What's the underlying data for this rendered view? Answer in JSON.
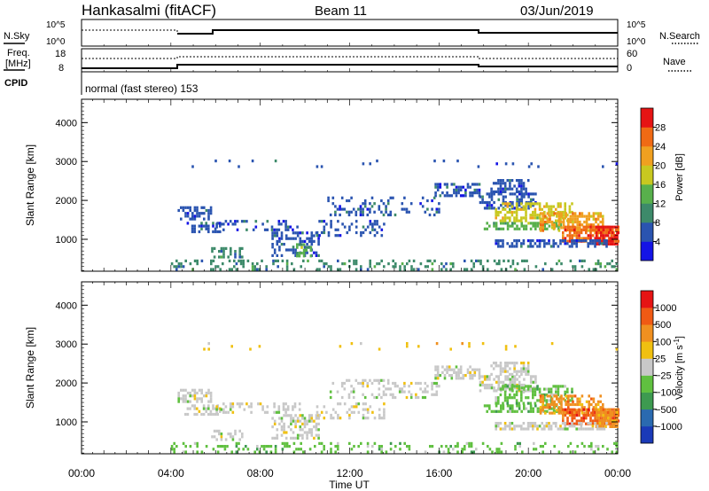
{
  "header": {
    "station": "Hankasalmi (fitACF)",
    "beam": "Beam 11",
    "date": "03/Jun/2019"
  },
  "noise_panel": {
    "left_label": "N.Sky",
    "right_label": "N.Search",
    "ticks_left": [
      "10^5",
      "10^0"
    ],
    "ticks_right": [
      "10^5",
      "10^0"
    ]
  },
  "freq_panel": {
    "left_label_1": "Freq.",
    "left_label_2": "[MHz]",
    "right_label": "Nave",
    "ticks_left": [
      "18",
      "8"
    ],
    "ticks_right": [
      "60",
      "0"
    ]
  },
  "cpid": {
    "label": "CPID",
    "value": "normal (fast stereo) 153"
  },
  "x_axis": {
    "title": "Time UT",
    "ticks": [
      "00:00",
      "04:00",
      "08:00",
      "12:00",
      "16:00",
      "20:00",
      "00:00"
    ],
    "hours": [
      0,
      4,
      8,
      12,
      16,
      20,
      24
    ]
  },
  "chart_data": [
    {
      "type": "heatmap",
      "ylabel": "Slant Range [km]",
      "xlabel": "Time UT",
      "x_range_hours": [
        0,
        24
      ],
      "ylim": [
        180,
        4600
      ],
      "yticks": [
        "4000",
        "3000",
        "2000",
        "1000"
      ],
      "ytick_values": [
        4000,
        3000,
        2000,
        1000
      ],
      "colorbar": {
        "title": "Power [dB]",
        "tick_labels": [
          "28",
          "24",
          "20",
          "16",
          "12",
          "8",
          "4"
        ],
        "tick_values": [
          28,
          24,
          20,
          16,
          12,
          8,
          4
        ],
        "range": [
          0,
          32
        ],
        "colors": [
          "#1414e6",
          "#2a54b0",
          "#3d8a6a",
          "#58b04c",
          "#c8c820",
          "#f0a020",
          "#f06a14",
          "#e61414"
        ]
      },
      "regions": [
        {
          "t": [
            4.3,
            5.8
          ],
          "r": [
            1500,
            1850
          ],
          "level": 1,
          "density": 0.55
        },
        {
          "t": [
            4.6,
            6.2
          ],
          "r": [
            1200,
            1450
          ],
          "level": 1,
          "density": 0.45
        },
        {
          "t": [
            6.0,
            9.8
          ],
          "r": [
            1250,
            1500
          ],
          "level": 1,
          "density": 0.35
        },
        {
          "t": [
            5.8,
            7.2
          ],
          "r": [
            550,
            800
          ],
          "level": 2,
          "density": 0.45
        },
        {
          "t": [
            8.5,
            10.6
          ],
          "r": [
            600,
            1200
          ],
          "level": 1,
          "density": 0.45
        },
        {
          "t": [
            9.6,
            10.3
          ],
          "r": [
            550,
            900
          ],
          "level": 3,
          "density": 0.5
        },
        {
          "t": [
            10.5,
            13.5
          ],
          "r": [
            1100,
            1500
          ],
          "level": 1,
          "density": 0.3
        },
        {
          "t": [
            11.0,
            16.0
          ],
          "r": [
            1600,
            2100
          ],
          "level": 1,
          "density": 0.25
        },
        {
          "t": [
            15.8,
            17.8
          ],
          "r": [
            2100,
            2450
          ],
          "level": 1,
          "density": 0.6
        },
        {
          "t": [
            17.8,
            20.3
          ],
          "r": [
            1800,
            2200
          ],
          "level": 1,
          "density": 0.55
        },
        {
          "t": [
            18.3,
            20.0
          ],
          "r": [
            2250,
            2550
          ],
          "level": 1,
          "density": 0.55
        },
        {
          "t": [
            18.0,
            21.5
          ],
          "r": [
            1250,
            1450
          ],
          "level": 3,
          "density": 0.65
        },
        {
          "t": [
            18.5,
            22.0
          ],
          "r": [
            1500,
            1950
          ],
          "level": 4,
          "density": 0.55
        },
        {
          "t": [
            20.5,
            23.3
          ],
          "r": [
            1200,
            1700
          ],
          "level": 5,
          "density": 0.6
        },
        {
          "t": [
            21.5,
            24.0
          ],
          "r": [
            950,
            1350
          ],
          "level": 6,
          "density": 0.75
        },
        {
          "t": [
            23.0,
            24.0
          ],
          "r": [
            900,
            1350
          ],
          "level": 7,
          "density": 0.85
        },
        {
          "t": [
            18.5,
            23.5
          ],
          "r": [
            850,
            1000
          ],
          "level": 1,
          "density": 0.6
        },
        {
          "t": [
            4.0,
            24.0
          ],
          "r": [
            190,
            480
          ],
          "level": 2,
          "density": 0.22
        },
        {
          "t": [
            4.0,
            24.0
          ],
          "r": [
            2900,
            3050
          ],
          "level": 1,
          "density": 0.03
        }
      ]
    },
    {
      "type": "heatmap",
      "ylabel": "Slant Range [km]",
      "xlabel": "Time UT",
      "x_range_hours": [
        0,
        24
      ],
      "ylim": [
        180,
        4600
      ],
      "yticks": [
        "4000",
        "3000",
        "2000",
        "1000"
      ],
      "ytick_values": [
        4000,
        3000,
        2000,
        1000
      ],
      "colorbar": {
        "title": "Velocity",
        "title_unit_base": "[m s",
        "title_unit_exp": "-1",
        "title_unit_close": "]",
        "tick_labels": [
          "1000",
          "500",
          "100",
          "25",
          "−25",
          "−100",
          "−500",
          "−1000"
        ],
        "tick_values": [
          1000,
          500,
          100,
          25,
          -25,
          -100,
          -500,
          -1000
        ],
        "colors": [
          "#1a3ab8",
          "#2a6ab0",
          "#3d9a50",
          "#60c040",
          "#c8c8c8",
          "#f0c010",
          "#f09020",
          "#f05a14",
          "#e61414"
        ]
      },
      "regions": [
        {
          "t": [
            4.3,
            5.8
          ],
          "r": [
            1500,
            1850
          ],
          "level": 4,
          "density": 0.55
        },
        {
          "t": [
            4.6,
            6.2
          ],
          "r": [
            1200,
            1450
          ],
          "level": 4,
          "density": 0.45
        },
        {
          "t": [
            6.0,
            9.8
          ],
          "r": [
            1250,
            1500
          ],
          "level": 4,
          "density": 0.35
        },
        {
          "t": [
            5.8,
            7.2
          ],
          "r": [
            550,
            800
          ],
          "level": 4,
          "density": 0.45
        },
        {
          "t": [
            8.5,
            10.6
          ],
          "r": [
            600,
            1200
          ],
          "level": 4,
          "density": 0.45
        },
        {
          "t": [
            10.5,
            13.5
          ],
          "r": [
            1100,
            1500
          ],
          "level": 4,
          "density": 0.3
        },
        {
          "t": [
            11.0,
            16.0
          ],
          "r": [
            1600,
            2100
          ],
          "level": 4,
          "density": 0.25
        },
        {
          "t": [
            15.8,
            17.8
          ],
          "r": [
            2100,
            2450
          ],
          "level": 4,
          "density": 0.6
        },
        {
          "t": [
            17.8,
            20.3
          ],
          "r": [
            1800,
            2200
          ],
          "level": 4,
          "density": 0.55
        },
        {
          "t": [
            18.3,
            20.0
          ],
          "r": [
            2250,
            2550
          ],
          "level": 4,
          "density": 0.55
        },
        {
          "t": [
            18.0,
            21.5
          ],
          "r": [
            1250,
            1450
          ],
          "level": 3,
          "density": 0.65
        },
        {
          "t": [
            18.5,
            22.0
          ],
          "r": [
            1500,
            1950
          ],
          "level": 3,
          "density": 0.5
        },
        {
          "t": [
            20.5,
            23.3
          ],
          "r": [
            1200,
            1700
          ],
          "level": 6,
          "density": 0.6
        },
        {
          "t": [
            21.5,
            24.0
          ],
          "r": [
            950,
            1350
          ],
          "level": 7,
          "density": 0.75
        },
        {
          "t": [
            23.0,
            24.0
          ],
          "r": [
            900,
            1350
          ],
          "level": 6,
          "density": 0.85
        },
        {
          "t": [
            18.5,
            23.5
          ],
          "r": [
            850,
            1000
          ],
          "level": 4,
          "density": 0.6
        },
        {
          "t": [
            4.0,
            24.0
          ],
          "r": [
            190,
            480
          ],
          "level": 3,
          "density": 0.22
        },
        {
          "t": [
            4.0,
            24.0
          ],
          "r": [
            2900,
            3050
          ],
          "level": 5,
          "density": 0.03
        }
      ]
    }
  ]
}
